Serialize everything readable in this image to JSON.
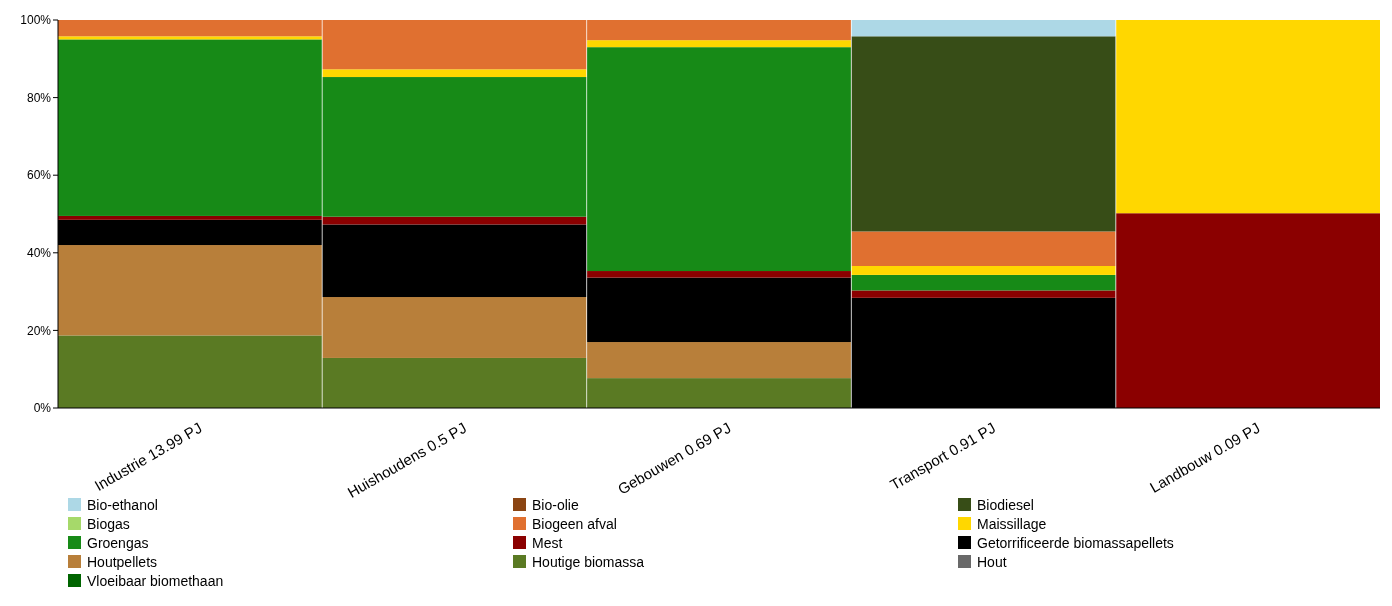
{
  "chart_data": {
    "type": "bar",
    "stacked": true,
    "legend": "bottom",
    "categories": [
      "Industrie 13.99 PJ",
      "Huishoudens 0.5 PJ",
      "Gebouwen 0.69 PJ",
      "Transport 0.91 PJ",
      "Landbouw 0.09 PJ"
    ],
    "ylim": [
      0,
      100
    ],
    "yticks": [
      {
        "value": 0,
        "label": "0%"
      },
      {
        "value": 20,
        "label": "20%"
      },
      {
        "value": 40,
        "label": "40%"
      },
      {
        "value": 60,
        "label": "60%"
      },
      {
        "value": 80,
        "label": "80%"
      },
      {
        "value": 100,
        "label": "100%"
      }
    ],
    "series": [
      {
        "name": "Vloeibaar biomethaan",
        "color": "#006400",
        "values": [
          0,
          0,
          0,
          0,
          0
        ]
      },
      {
        "name": "Hout",
        "color": "#696969",
        "values": [
          0,
          0,
          0,
          0,
          0
        ]
      },
      {
        "name": "Houtige biomassa",
        "color": "#5a7a23",
        "values": [
          18.7,
          12.9,
          7.7,
          0,
          0
        ]
      },
      {
        "name": "Houtpellets",
        "color": "#b87f3a",
        "values": [
          23.3,
          15.7,
          9.3,
          0,
          0
        ]
      },
      {
        "name": "Getorrificeerde biomassapellets",
        "color": "#000000",
        "values": [
          6.5,
          18.7,
          16.6,
          28.4,
          0
        ]
      },
      {
        "name": "Mest",
        "color": "#8b0000",
        "values": [
          1.0,
          2.0,
          1.7,
          1.9,
          50.2
        ]
      },
      {
        "name": "Groengas",
        "color": "#178a17",
        "values": [
          45.5,
          36.0,
          57.7,
          4.0,
          0
        ]
      },
      {
        "name": "Maissillage",
        "color": "#ffd700",
        "values": [
          0.8,
          2.0,
          1.8,
          2.3,
          49.8
        ]
      },
      {
        "name": "Biogeen afval",
        "color": "#e07030",
        "values": [
          4.2,
          12.7,
          5.2,
          8.9,
          0
        ]
      },
      {
        "name": "Biogas",
        "color": "#a6d96a",
        "values": [
          0,
          0,
          0,
          0,
          0
        ]
      },
      {
        "name": "Biodiesel",
        "color": "#374d17",
        "values": [
          0,
          0,
          0,
          50.3,
          0
        ]
      },
      {
        "name": "Bio-olie",
        "color": "#8b4513",
        "values": [
          0,
          0,
          0,
          0,
          0
        ]
      },
      {
        "name": "Bio-ethanol",
        "color": "#add8e6",
        "values": [
          0,
          0,
          0,
          4.2,
          0
        ]
      }
    ]
  }
}
